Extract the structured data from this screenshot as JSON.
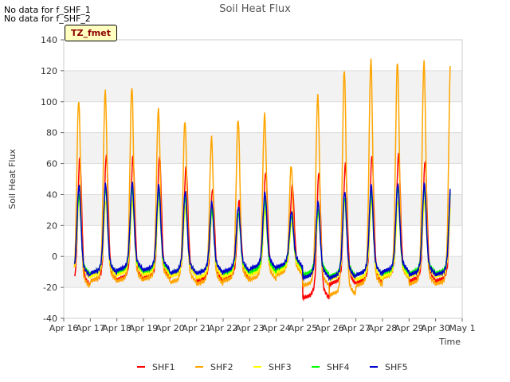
{
  "annotations": {
    "nodata1": "No data for f_SHF_1",
    "nodata2": "No data for f_SHF_2",
    "tz": "TZ_fmet"
  },
  "chart_data": {
    "type": "line",
    "title": "Soil Heat Flux",
    "xlabel": "Time",
    "ylabel": "Soil Heat Flux",
    "ylim": [
      -40,
      140
    ],
    "yticks": [
      -40,
      -20,
      0,
      20,
      40,
      60,
      80,
      100,
      120,
      140
    ],
    "x_tick_labels": [
      "Apr 16",
      "Apr 17",
      "Apr 18",
      "Apr 19",
      "Apr 20",
      "Apr 21",
      "Apr 22",
      "Apr 23",
      "Apr 24",
      "Apr 25",
      "Apr 26",
      "Apr 27",
      "Apr 28",
      "Apr 29",
      "Apr 30",
      "May 1"
    ],
    "xlim_days": [
      0,
      15
    ],
    "data_start_day": 0.4,
    "data_end_day": 14.55,
    "legend_position": "bottom",
    "series": [
      {
        "name": "SHF1",
        "color": "#ff0000",
        "daily_peaks": [
          64,
          66,
          65,
          65,
          58,
          44,
          36,
          55,
          46,
          55,
          60,
          66,
          66,
          62
        ],
        "daily_mins": [
          -19,
          -16,
          -15,
          -14,
          -13,
          -16,
          -15,
          -12,
          -10,
          -27,
          -18,
          -17,
          -13,
          -16
        ],
        "peak_hour": 14.5
      },
      {
        "name": "SHF2",
        "color": "#ffa500",
        "daily_peaks": [
          101,
          107,
          110,
          95,
          88,
          77,
          89,
          92,
          59,
          104,
          121,
          127,
          126,
          126
        ],
        "daily_mins": [
          -20,
          -16,
          -16,
          -15,
          -17,
          -18,
          -16,
          -15,
          -12,
          -19,
          -25,
          -19,
          -14,
          -18
        ],
        "peak_hour": 13.5
      },
      {
        "name": "SHF3",
        "color": "#ffff00",
        "daily_peaks": [
          39,
          36,
          36,
          36,
          32,
          30,
          30,
          30,
          22,
          28,
          36,
          36,
          36,
          36
        ],
        "daily_mins": [
          -14,
          -13,
          -12,
          -12,
          -13,
          -14,
          -13,
          -12,
          -10,
          -14,
          -15,
          -15,
          -13,
          -13
        ],
        "peak_hour": 14.0
      },
      {
        "name": "SHF4",
        "color": "#00ff00",
        "daily_peaks": [
          40,
          44,
          44,
          42,
          38,
          30,
          28,
          36,
          26,
          30,
          38,
          42,
          44,
          44
        ],
        "daily_mins": [
          -12,
          -11,
          -10,
          -10,
          -11,
          -11,
          -11,
          -10,
          -8,
          -12,
          -13,
          -12,
          -11,
          -11
        ],
        "peak_hour": 13.8
      },
      {
        "name": "SHF5",
        "color": "#0000cd",
        "daily_peaks": [
          46,
          47,
          48,
          46,
          42,
          35,
          32,
          41,
          29,
          35,
          42,
          46,
          47,
          47
        ],
        "daily_mins": [
          -13,
          -11,
          -9,
          -9,
          -11,
          -11,
          -10,
          -8,
          -7,
          -14,
          -14,
          -12,
          -10,
          -12
        ],
        "peak_hour": 13.8
      }
    ]
  }
}
